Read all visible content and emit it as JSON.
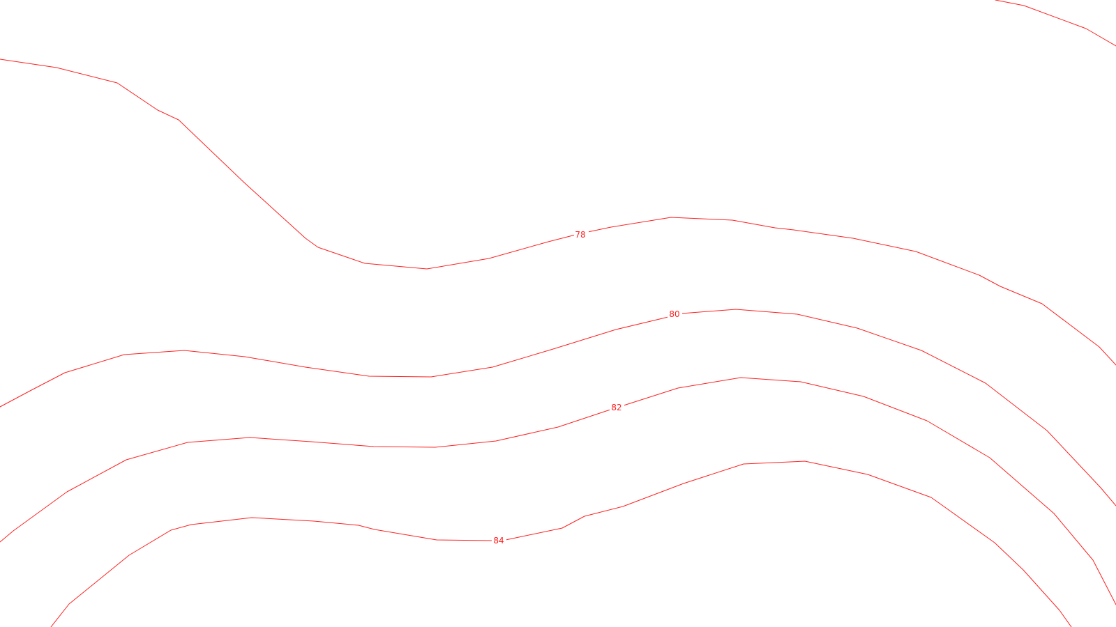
{
  "map": {
    "type": "contour",
    "background_color": "#ffffff",
    "line_color": "#ff2020",
    "contours": [
      {
        "id": "c76",
        "level": "",
        "label": ""
      },
      {
        "id": "c78",
        "level": "78",
        "label": "78"
      },
      {
        "id": "c80",
        "level": "80",
        "label": "80"
      },
      {
        "id": "c82",
        "level": "82",
        "label": "82"
      },
      {
        "id": "c84",
        "level": "84",
        "label": "84"
      }
    ]
  }
}
